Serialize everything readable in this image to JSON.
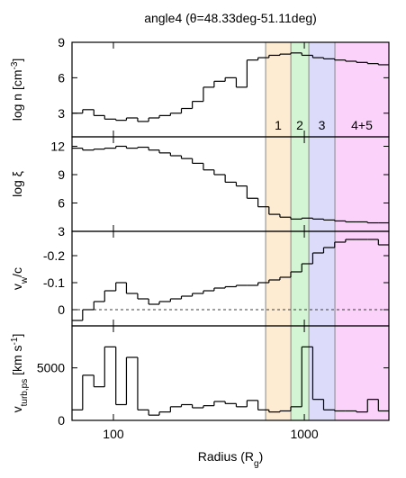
{
  "chart_data": {
    "type": "step-panels",
    "title": "angle4 (θ=48.33deg-51.11deg)",
    "xlabel": [
      {
        "t": "Radius (R"
      },
      {
        "t": "g",
        "s": "sub"
      },
      {
        "t": ")"
      }
    ],
    "xlog": true,
    "xlim": [
      60.7,
      2773
    ],
    "xticks": [
      100,
      1000
    ],
    "bins": [
      60.7,
      69,
      79,
      90,
      103,
      117,
      134,
      153,
      174,
      199,
      227,
      259,
      296,
      337,
      385,
      440,
      501,
      572,
      653,
      745,
      849,
      970,
      1107,
      1262,
      1442,
      1644,
      1875,
      2143,
      2443,
      2773
    ],
    "regions": [
      {
        "from": 627,
        "to": 850,
        "label": "1",
        "color": "#fdebd2"
      },
      {
        "from": 850,
        "to": 1056,
        "label": "2",
        "color": "#d4f5d4"
      },
      {
        "from": 1056,
        "to": 1446,
        "label": "3",
        "color": "#dcdcfa"
      },
      {
        "from": 1446,
        "to": 2773,
        "label": "4+5",
        "color": "#fad2fa"
      }
    ],
    "panels": [
      {
        "type": "step",
        "ylabel": [
          {
            "t": "log n [cm"
          },
          {
            "t": "-3",
            "s": "sup"
          },
          {
            "t": "]"
          }
        ],
        "ylim": [
          1,
          9
        ],
        "yticks": [
          3,
          6,
          9
        ],
        "color": "#000000",
        "values": [
          3.0,
          3.3,
          2.8,
          2.5,
          2.4,
          2.6,
          2.3,
          2.6,
          2.8,
          3.0,
          3.4,
          4.0,
          5.2,
          5.7,
          6.0,
          5.2,
          7.5,
          7.7,
          7.9,
          8.0,
          8.1,
          7.9,
          7.7,
          7.6,
          7.5,
          7.4,
          7.3,
          7.2,
          7.1
        ]
      },
      {
        "type": "step",
        "ylabel": [
          {
            "t": "log ξ"
          }
        ],
        "ylim": [
          3,
          13
        ],
        "yticks": [
          3,
          6,
          9,
          12
        ],
        "color": "#000000",
        "values": [
          11.8,
          11.6,
          11.7,
          11.8,
          12.0,
          11.8,
          11.9,
          11.6,
          11.3,
          11.0,
          10.7,
          10.2,
          9.5,
          9.0,
          8.2,
          7.8,
          6.5,
          5.6,
          4.8,
          4.5,
          4.3,
          4.4,
          4.3,
          4.2,
          4.1,
          4.0,
          4.0,
          3.9,
          3.9
        ]
      },
      {
        "type": "step",
        "ylabel": [
          {
            "t": "v"
          },
          {
            "t": "w",
            "s": "sub"
          },
          {
            "t": "/c"
          }
        ],
        "ylim": [
          0.06,
          -0.29
        ],
        "yticks": [
          -0.2,
          -0.1,
          0
        ],
        "hline": 0,
        "color": "#000000",
        "values": [
          0.04,
          0.0,
          -0.03,
          -0.07,
          -0.1,
          -0.06,
          -0.04,
          -0.02,
          -0.03,
          -0.04,
          -0.05,
          -0.06,
          -0.07,
          -0.08,
          -0.085,
          -0.09,
          -0.09,
          -0.1,
          -0.11,
          -0.12,
          -0.14,
          -0.17,
          -0.21,
          -0.23,
          -0.25,
          -0.26,
          -0.26,
          -0.26,
          -0.24
        ]
      },
      {
        "type": "step",
        "ylabel": [
          {
            "t": "v"
          },
          {
            "t": "turb,ps",
            "s": "sub"
          },
          {
            "t": " [km s"
          },
          {
            "t": "-1",
            "s": "sup"
          },
          {
            "t": "]"
          }
        ],
        "ylim": [
          0,
          9000
        ],
        "yticks": [
          0,
          5000
        ],
        "color": "#000000",
        "values": [
          1000,
          4300,
          3200,
          7000,
          1500,
          6000,
          1000,
          500,
          800,
          1300,
          1500,
          1200,
          1400,
          1800,
          1600,
          1300,
          1900,
          1000,
          800,
          900,
          1300,
          7000,
          2000,
          1000,
          900,
          900,
          800,
          2000,
          900
        ]
      }
    ]
  }
}
